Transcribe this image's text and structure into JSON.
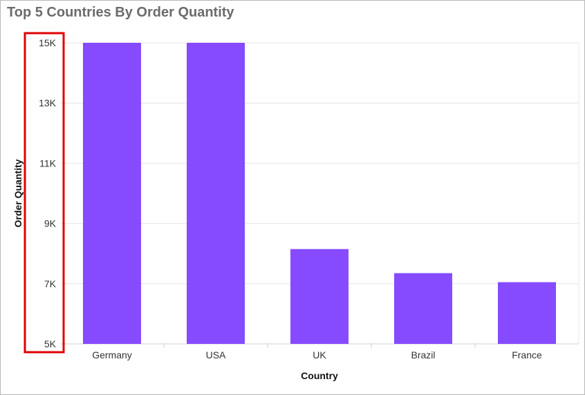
{
  "chart_data": {
    "type": "bar",
    "title": "Top 5 Countries By Order Quantity",
    "xlabel": "Country",
    "ylabel": "Order Quantity",
    "categories": [
      "Germany",
      "USA",
      "UK",
      "Brazil",
      "France"
    ],
    "values": [
      15000,
      15000,
      8150,
      7350,
      7050
    ],
    "ylim": [
      5000,
      15000
    ],
    "yticks": [
      5000,
      7000,
      9000,
      11000,
      13000,
      15000
    ],
    "ytick_labels": [
      "5K",
      "7K",
      "9K",
      "11K",
      "13K",
      "15K"
    ],
    "grid": true,
    "bar_color": "#864bff",
    "highlight_color": "#e00000"
  }
}
